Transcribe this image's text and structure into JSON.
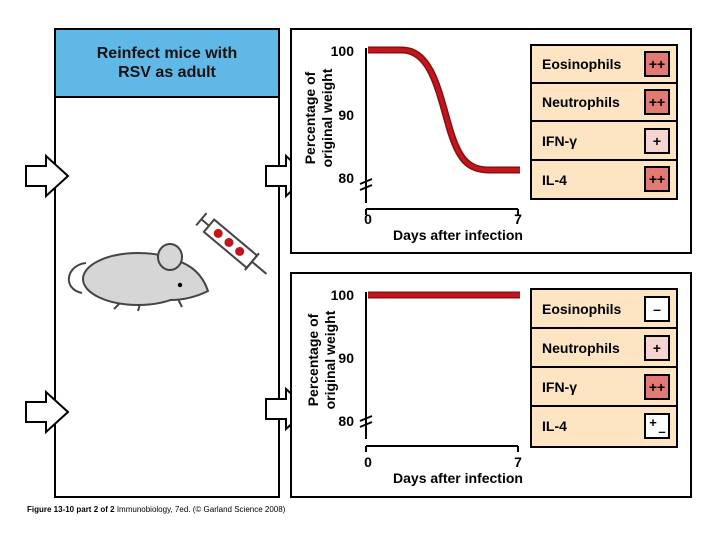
{
  "left_panel": {
    "title_line1": "Reinfect mice with",
    "title_line2": "RSV as adult"
  },
  "colors": {
    "header_bg": "#5fb8e6",
    "box_bg": "#fde4c3",
    "curve": "#c0161c",
    "strong_badge": "#e07a72",
    "weak_badge": "#f6d5d0"
  },
  "panels": [
    {
      "y_label_line1": "Percentage of",
      "y_label_line2": "original weight",
      "y_ticks": [
        "100",
        "90",
        "80"
      ],
      "x_ticks": [
        "0",
        "7"
      ],
      "x_label": "Days after infection",
      "markers": [
        {
          "label": "Eosinophils",
          "value": "++",
          "level": "strong"
        },
        {
          "label": "Neutrophils",
          "value": "++",
          "level": "strong"
        },
        {
          "label": "IFN-γ",
          "value": "+",
          "level": "weak"
        },
        {
          "label": "IL-4",
          "value": "++",
          "level": "strong"
        }
      ]
    },
    {
      "y_label_line1": "Percentage of",
      "y_label_line2": "original weight",
      "y_ticks": [
        "100",
        "90",
        "80"
      ],
      "x_ticks": [
        "0",
        "7"
      ],
      "x_label": "Days after infection",
      "markers": [
        {
          "label": "Eosinophils",
          "value": "–",
          "level": "none"
        },
        {
          "label": "Neutrophils",
          "value": "+",
          "level": "weak"
        },
        {
          "label": "IFN-γ",
          "value": "++",
          "level": "strong"
        },
        {
          "label": "IL-4",
          "value": "+",
          "level": "weak",
          "extra": "–"
        }
      ]
    }
  ],
  "caption": {
    "fig_ref": "Figure 13-10 part 2 of 2",
    "book": "Immunobiology, 7ed.",
    "copyright": "(© Garland Science 2008)"
  }
}
